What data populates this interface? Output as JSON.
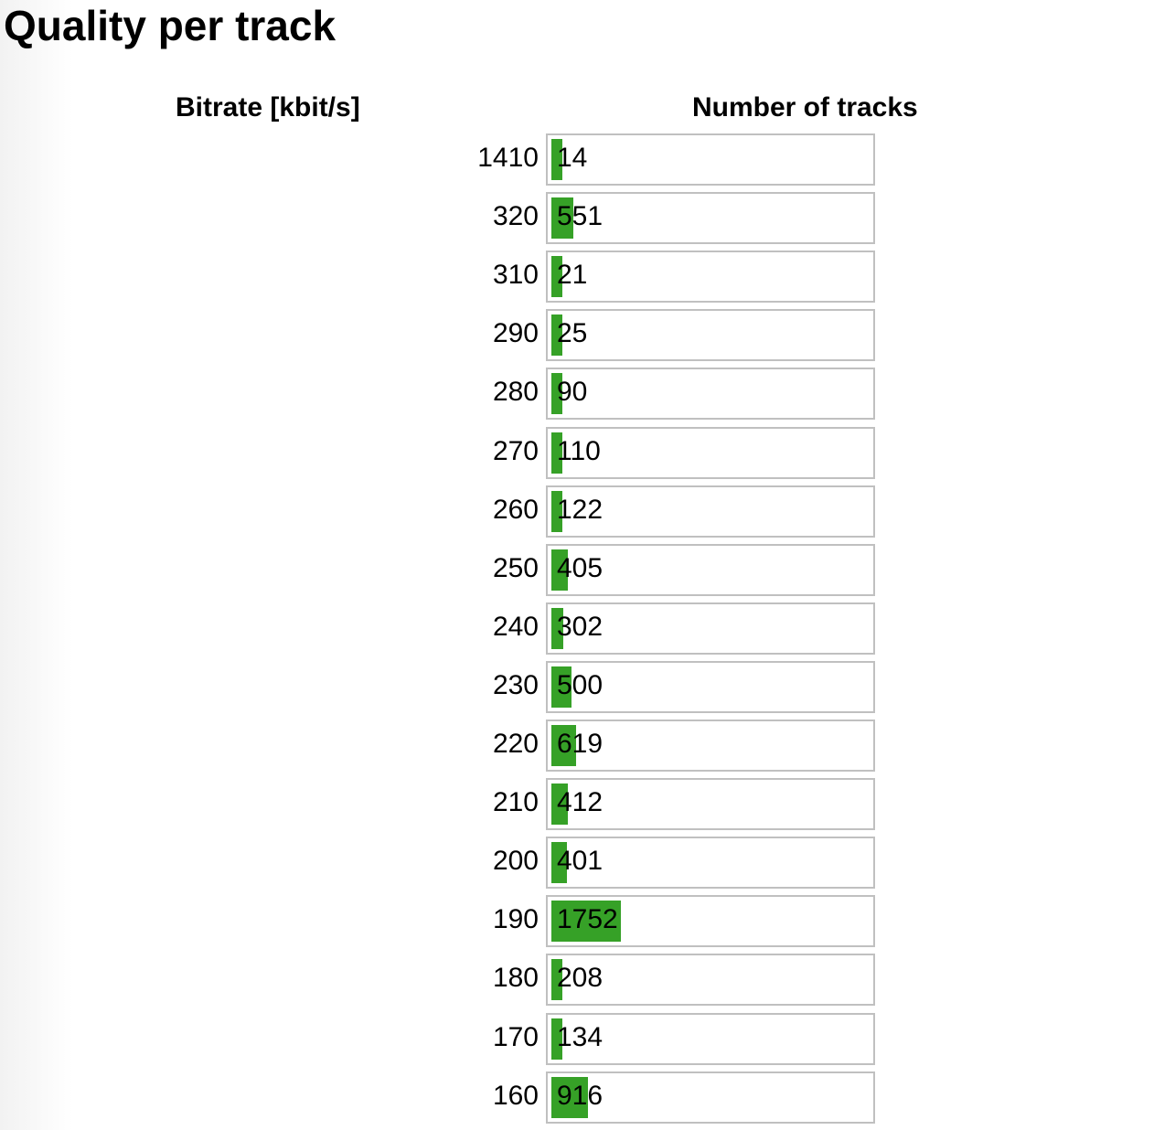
{
  "title": "Quality per track",
  "columns": {
    "bitrate": "Bitrate [kbit/s]",
    "tracks": "Number of tracks"
  },
  "colors": {
    "bar": "#36a127",
    "box_border": "#c0c0c0"
  },
  "chart_data": {
    "type": "bar",
    "orientation": "horizontal",
    "xlabel": "Number of tracks",
    "ylabel": "Bitrate [kbit/s]",
    "categories": [
      "1410",
      "320",
      "310",
      "290",
      "280",
      "270",
      "260",
      "250",
      "240",
      "230",
      "220",
      "210",
      "200",
      "190",
      "180",
      "170",
      "160"
    ],
    "values": [
      14,
      551,
      21,
      25,
      90,
      110,
      122,
      405,
      302,
      500,
      619,
      412,
      401,
      1752,
      208,
      134,
      916
    ],
    "xlim": [
      0,
      8000
    ],
    "min_bar_fraction": 0.035,
    "grid": false,
    "legend": "none"
  }
}
